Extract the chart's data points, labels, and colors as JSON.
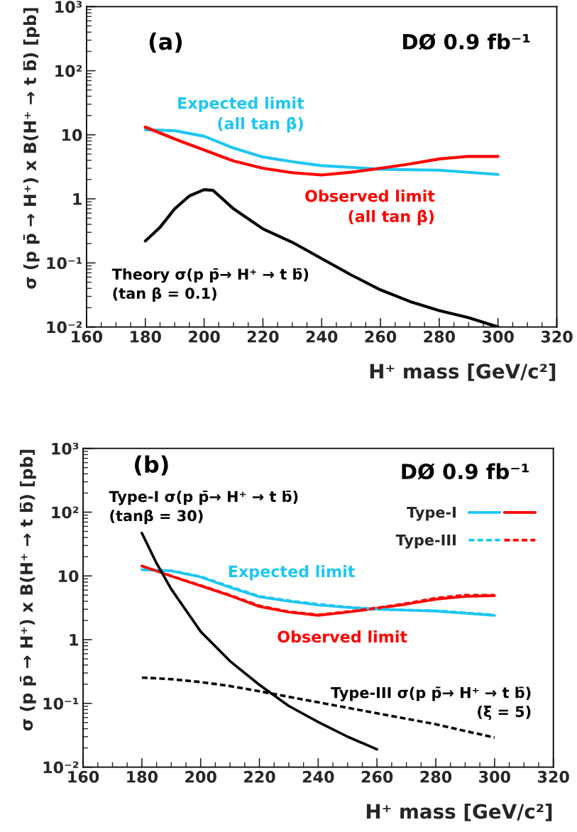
{
  "chart_data": [
    {
      "type": "line",
      "xlabel": "H⁺ mass [GeV/c²]",
      "ylabel": "σ (p p̄ → H⁺) x B(H⁺ → t b̄) [pb]",
      "log": "y",
      "xlim": [
        160,
        320
      ],
      "xticks": [
        160,
        180,
        200,
        220,
        240,
        260,
        280,
        300,
        320
      ],
      "ylim": [
        0.01,
        1000
      ],
      "yticks": [
        {
          "value": 0.01,
          "label": "10⁻²"
        },
        {
          "value": 0.1,
          "label": "10⁻¹"
        },
        1,
        10,
        {
          "value": 100,
          "label": "10²"
        },
        {
          "value": 1000,
          "label": "10³"
        }
      ],
      "series": [
        {
          "color": "#1ec6f2",
          "x": [
            180,
            190,
            200,
            210,
            220,
            230,
            240,
            250,
            260,
            280,
            300
          ],
          "values": [
            12,
            11.6,
            9.5,
            6.2,
            4.5,
            3.8,
            3.3,
            3.1,
            2.9,
            2.8,
            2.4
          ]
        },
        {
          "color": "#ff0000",
          "x": [
            180,
            190,
            200,
            210,
            220,
            230,
            240,
            250,
            260,
            270,
            280,
            290,
            300
          ],
          "values": [
            13.2,
            8.6,
            5.8,
            3.9,
            3.0,
            2.56,
            2.36,
            2.6,
            3.0,
            3.5,
            4.2,
            4.6,
            4.6
          ]
        },
        {
          "color": "#000000",
          "x": [
            180,
            185,
            190,
            195,
            200,
            203,
            210,
            220,
            230,
            240,
            250,
            260,
            270,
            280,
            290,
            300
          ],
          "values": [
            0.22,
            0.36,
            0.7,
            1.11,
            1.39,
            1.36,
            0.7,
            0.34,
            0.21,
            0.117,
            0.065,
            0.038,
            0.025,
            0.018,
            0.014,
            0.01
          ]
        }
      ],
      "annotations": [
        "(a)",
        "DØ 0.9 fb⁻¹",
        "Expected limit\n(all tan β)",
        "Observed limit\n(all tan β)",
        "Theory σ(p p̄→ H⁺ → t b̄)\n(tan β = 0.1)"
      ]
    },
    {
      "type": "line",
      "xlabel": "H⁺ mass [GeV/c²]",
      "ylabel": "σ (p p̄ → H⁺) x B(H⁺ → t b̄) [pb]",
      "log": "y",
      "legend": "top right",
      "xlim": [
        160,
        320
      ],
      "xticks": [
        160,
        180,
        200,
        220,
        240,
        260,
        280,
        300,
        320
      ],
      "ylim": [
        0.01,
        1000
      ],
      "yticks": [
        {
          "value": 0.01,
          "label": "10⁻²"
        },
        {
          "value": 0.1,
          "label": "10⁻¹"
        },
        1,
        10,
        {
          "value": 100,
          "label": "10²"
        },
        {
          "value": 1000,
          "label": "10³"
        }
      ],
      "series": [
        {
          "name": "Type-I",
          "color": "#1ec6f2",
          "line_style": "solid",
          "x": [
            180,
            190,
            200,
            210,
            220,
            230,
            240,
            250,
            260,
            280,
            300
          ],
          "values": [
            12.5,
            12,
            9.6,
            6.6,
            4.7,
            4.0,
            3.5,
            3.2,
            3.0,
            2.8,
            2.4
          ]
        },
        {
          "color": "#ff0000",
          "line_style": "solid",
          "x": [
            180,
            190,
            200,
            210,
            220,
            230,
            240,
            250,
            260,
            270,
            280,
            290,
            300
          ],
          "values": [
            14.3,
            9.9,
            7.0,
            4.9,
            3.3,
            2.7,
            2.4,
            2.7,
            3.1,
            3.6,
            4.3,
            4.75,
            4.9
          ]
        },
        {
          "name": "Type-III",
          "color": "#1ec6f2",
          "line_style": "dashed",
          "x": [
            180,
            190,
            200,
            210,
            220,
            230,
            240,
            250,
            260,
            280,
            300
          ],
          "values": [
            12.5,
            12.1,
            9.8,
            6.8,
            4.8,
            4.1,
            3.6,
            3.25,
            3.0,
            2.85,
            2.45
          ]
        },
        {
          "color": "#ff0000",
          "line_style": "dashed",
          "x": [
            180,
            190,
            200,
            210,
            220,
            230,
            240,
            250,
            260,
            270,
            280,
            290,
            300
          ],
          "values": [
            14.3,
            10,
            7.1,
            5.0,
            3.4,
            2.75,
            2.45,
            2.75,
            3.15,
            3.7,
            4.5,
            5.0,
            5.0
          ]
        },
        {
          "color": "#000000",
          "line_style": "solid",
          "x": [
            180,
            185,
            190,
            200,
            210,
            220,
            230,
            240,
            250,
            260
          ],
          "values": [
            47,
            15.8,
            6.2,
            1.34,
            0.46,
            0.195,
            0.091,
            0.051,
            0.03,
            0.019
          ]
        },
        {
          "color": "#000000",
          "line_style": "dashed",
          "x": [
            180,
            190,
            200,
            210,
            220,
            240,
            260,
            280,
            300
          ],
          "values": [
            0.254,
            0.24,
            0.216,
            0.187,
            0.155,
            0.104,
            0.07,
            0.047,
            0.029
          ]
        }
      ],
      "annotations": [
        "(b)",
        "DØ 0.9 fb⁻¹",
        "Type-I σ(p p̄→ H⁺ → t b̄)\n(tanβ = 30)",
        "Expected limit",
        "Observed limit",
        "Type-III σ(p p̄→ H⁺ → t b̄)\n(ξ = 5)"
      ]
    }
  ]
}
